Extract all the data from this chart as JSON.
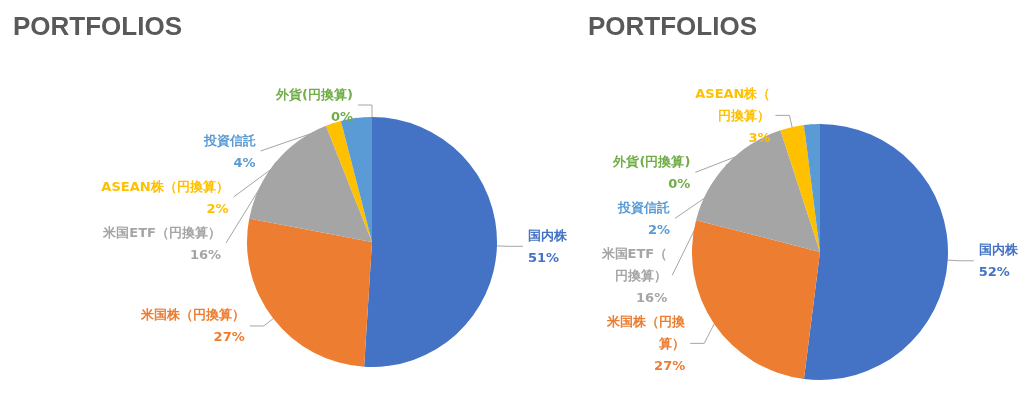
{
  "chart_data": [
    {
      "type": "pie",
      "title": "PORTFOLIOS",
      "categories": [
        "国内株",
        "米国株（円換算）",
        "米国ETF（円換算）",
        "ASEAN株（円換算）",
        "投資信託",
        "外貨(円換算)"
      ],
      "values": [
        51,
        27,
        16,
        2,
        4,
        0
      ],
      "value_labels": [
        "51%",
        "27%",
        "16%",
        "2%",
        "4%",
        "0%"
      ],
      "colors": [
        "#4472c4",
        "#ed7d31",
        "#a5a5a5",
        "#ffc000",
        "#5b9bd5",
        "#70ad47"
      ]
    },
    {
      "type": "pie",
      "title": "PORTFOLIOS",
      "categories": [
        "国内株",
        "米国株（円換算）",
        "米国ETF（円換算）",
        "ASEAN株（円換算）",
        "投資信託",
        "外貨(円換算)"
      ],
      "values": [
        52,
        27,
        16,
        3,
        2,
        0
      ],
      "value_labels": [
        "52%",
        "27%",
        "16%",
        "3%",
        "2%",
        "0%"
      ],
      "colors": [
        "#4472c4",
        "#ed7d31",
        "#a5a5a5",
        "#ffc000",
        "#5b9bd5",
        "#70ad47"
      ]
    }
  ]
}
